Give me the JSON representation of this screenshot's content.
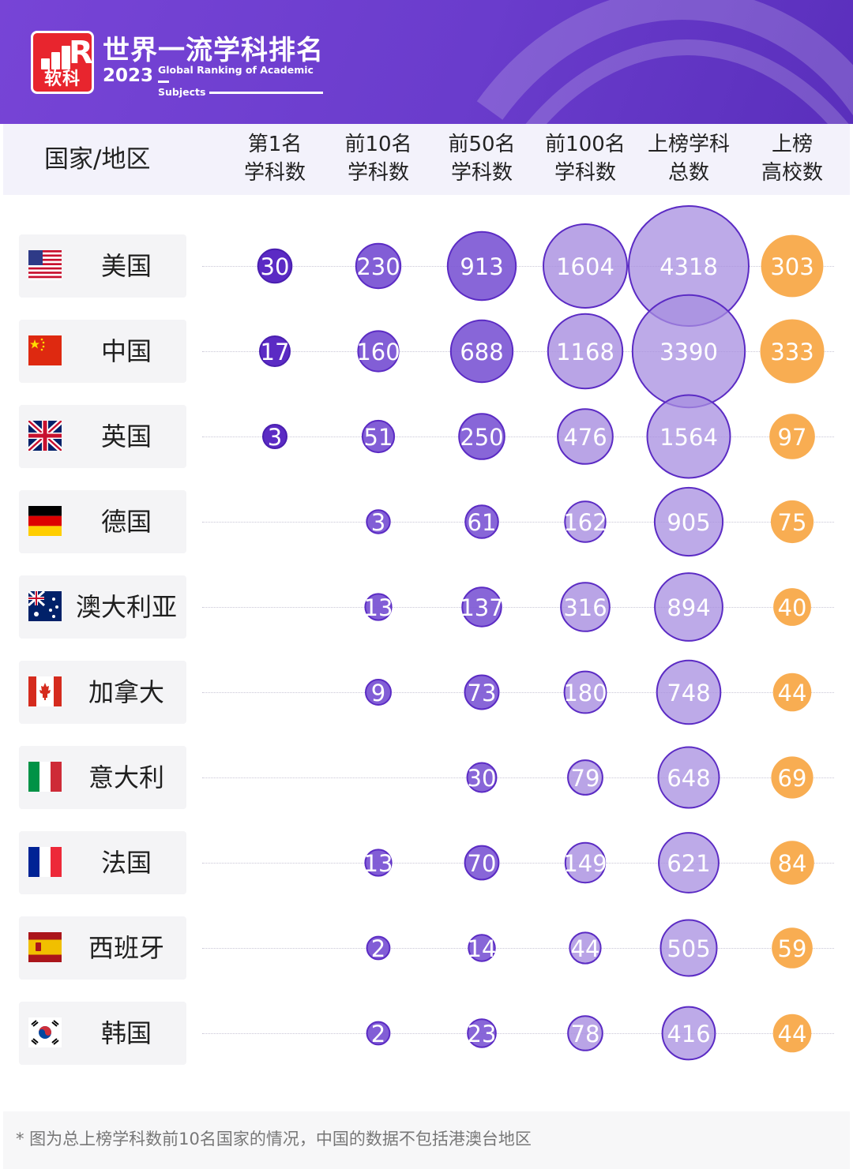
{
  "header": {
    "logo_text": "软科",
    "logo_letter": "R",
    "title_zh": "世界一流学科排名",
    "year": "2023",
    "title_en_1": "Global Ranking of Academic",
    "title_en_2": "Subjects"
  },
  "columns": {
    "country": "国家/地区",
    "c1": "第1名\n学科数",
    "c2": "前10名\n学科数",
    "c3": "前50名\n学科数",
    "c4": "前100名\n学科数",
    "c5": "上榜学科\n总数",
    "c6": "上榜\n高校数"
  },
  "colors": {
    "purple_dark": "#5b2bc4",
    "purple_mid": "#7b55d4",
    "purple_light": "#a78de0",
    "orange": "#f8ad52",
    "header_bg": "#6a3ccc"
  },
  "rows": [
    {
      "name": "美国",
      "flag": "us-flag"
    },
    {
      "name": "中国",
      "flag": "cn-flag"
    },
    {
      "name": "英国",
      "flag": "gb-flag"
    },
    {
      "name": "德国",
      "flag": "de-flag"
    },
    {
      "name": "澳大利亚",
      "flag": "au-flag"
    },
    {
      "name": "加拿大",
      "flag": "ca-flag"
    },
    {
      "name": "意大利",
      "flag": "it-flag"
    },
    {
      "name": "法国",
      "flag": "fr-flag"
    },
    {
      "name": "西班牙",
      "flag": "es-flag"
    },
    {
      "name": "韩国",
      "flag": "kr-flag"
    }
  ],
  "chart_data": {
    "type": "table",
    "categories": [
      "美国",
      "中国",
      "英国",
      "德国",
      "澳大利亚",
      "加拿大",
      "意大利",
      "法国",
      "西班牙",
      "韩国"
    ],
    "series": [
      {
        "name": "第1名学科数",
        "values": [
          30,
          17,
          3,
          null,
          null,
          null,
          null,
          null,
          null,
          null
        ]
      },
      {
        "name": "前10名学科数",
        "values": [
          230,
          160,
          51,
          3,
          13,
          9,
          null,
          13,
          2,
          2
        ]
      },
      {
        "name": "前50名学科数",
        "values": [
          913,
          688,
          250,
          61,
          137,
          73,
          30,
          70,
          14,
          23
        ]
      },
      {
        "name": "前100名学科数",
        "values": [
          1604,
          1168,
          476,
          162,
          316,
          180,
          79,
          149,
          44,
          78
        ]
      },
      {
        "name": "上榜学科总数",
        "values": [
          4318,
          3390,
          1564,
          905,
          894,
          748,
          648,
          621,
          505,
          416
        ]
      },
      {
        "name": "上榜高校数",
        "values": [
          303,
          333,
          97,
          75,
          40,
          44,
          69,
          84,
          59,
          44
        ]
      }
    ]
  },
  "footnote": "* 图为总上榜学科数前10名国家的情况，中国的数据不包括港澳台地区"
}
